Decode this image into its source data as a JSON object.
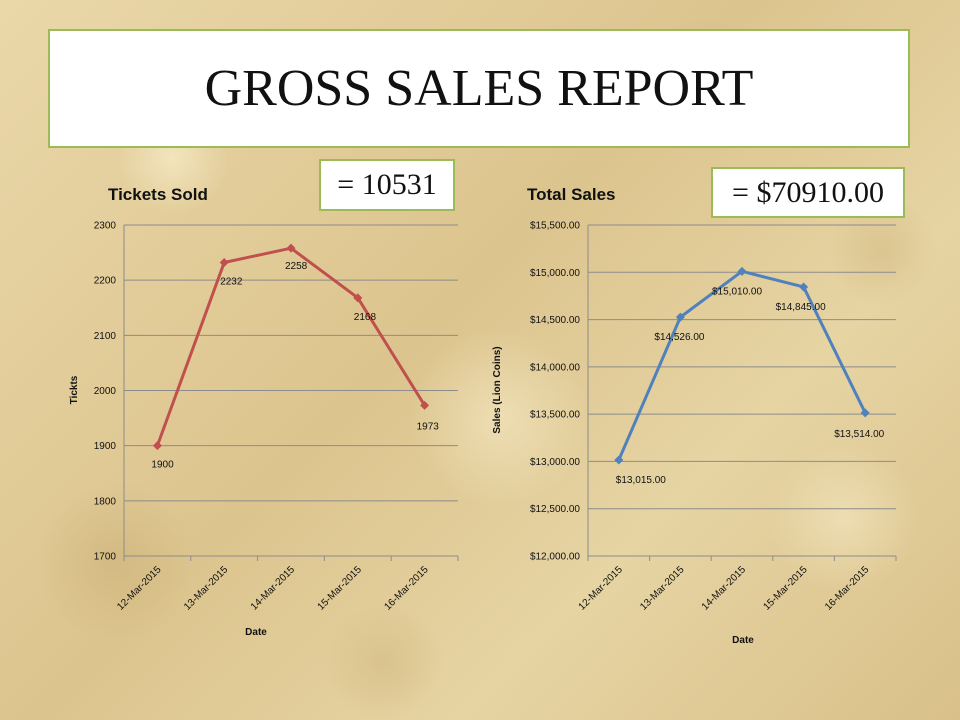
{
  "title": "GROSS SALES REPORT",
  "colors": {
    "box_border": "#9bbb59",
    "tickets_series": "#c0504d",
    "sales_series": "#4f81bd",
    "gridline": "#8c8c8c"
  },
  "totals": {
    "tickets": "= 10531",
    "sales": "= $70910.00"
  },
  "chart_data": [
    {
      "type": "line",
      "title": "Tickets Sold",
      "xlabel": "Date",
      "ylabel": "Tickts",
      "categories": [
        "12-Mar-2015",
        "13-Mar-2015",
        "14-Mar-2015",
        "15-Mar-2015",
        "16-Mar-2015"
      ],
      "series": [
        {
          "values": [
            1900,
            2232,
            2258,
            2168,
            1973
          ]
        }
      ],
      "data_labels": [
        "1900",
        "2232",
        "2258",
        "2168",
        "1973"
      ],
      "ylim": [
        1700,
        2300
      ],
      "yticks": [
        1700,
        1800,
        1900,
        2000,
        2100,
        2200,
        2300
      ],
      "ytick_labels": [
        "1700",
        "1800",
        "1900",
        "2000",
        "2100",
        "2200",
        "2300"
      ],
      "marker": "diamond",
      "grid": true
    },
    {
      "type": "line",
      "title": "Total Sales",
      "xlabel": "Date",
      "ylabel": "Sales (Lion Coins)",
      "categories": [
        "12-Mar-2015",
        "13-Mar-2015",
        "14-Mar-2015",
        "15-Mar-2015",
        "16-Mar-2015"
      ],
      "series": [
        {
          "values": [
            13015.0,
            14526.0,
            15010.0,
            14845.0,
            13514.0
          ]
        }
      ],
      "data_labels": [
        "$13,015.00",
        "$14,526.00",
        "$15,010.00",
        "$14,845.00",
        "$13,514.00"
      ],
      "ylim": [
        12000,
        15500
      ],
      "yticks": [
        12000,
        12500,
        13000,
        13500,
        14000,
        14500,
        15000,
        15500
      ],
      "ytick_labels": [
        "$12,000.00",
        "$12,500.00",
        "$13,000.00",
        "$13,500.00",
        "$14,000.00",
        "$14,500.00",
        "$15,000.00",
        "$15,500.00"
      ],
      "marker": "diamond",
      "grid": true
    }
  ]
}
